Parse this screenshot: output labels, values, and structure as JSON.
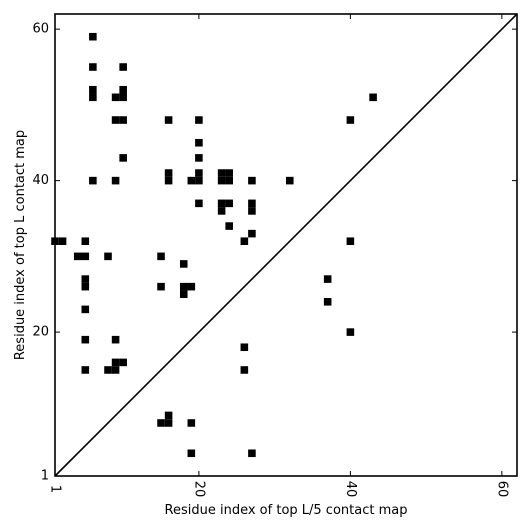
{
  "chart_data": {
    "type": "heatmap",
    "xlabel": "Residue index of top L/5 contact map",
    "ylabel": "Residue index of top L contact map",
    "xlim": [
      1,
      62
    ],
    "ylim": [
      1,
      62
    ],
    "x_ticks": [
      {
        "value": 1,
        "label": "1"
      },
      {
        "value": 20,
        "label": "20"
      },
      {
        "value": 40,
        "label": "40"
      },
      {
        "value": 60,
        "label": "60"
      }
    ],
    "y_ticks": [
      {
        "value": 1,
        "label": "1"
      },
      {
        "value": 20,
        "label": "20"
      },
      {
        "value": 40,
        "label": "40"
      },
      {
        "value": 60,
        "label": "60"
      }
    ],
    "diagonal": true,
    "cell_color": "#000000",
    "upper_contacts": [
      [
        6,
        59
      ],
      [
        6,
        55
      ],
      [
        6,
        52
      ],
      [
        6,
        51
      ],
      [
        6,
        40
      ],
      [
        10,
        55
      ],
      [
        10,
        52
      ],
      [
        10,
        51
      ],
      [
        9,
        51
      ],
      [
        9,
        48
      ],
      [
        10,
        48
      ],
      [
        10,
        43
      ],
      [
        9,
        40
      ],
      [
        1,
        32
      ],
      [
        2,
        32
      ],
      [
        5,
        32
      ],
      [
        4,
        30
      ],
      [
        5,
        30
      ],
      [
        8,
        30
      ],
      [
        5,
        27
      ],
      [
        5,
        26
      ],
      [
        5,
        23
      ],
      [
        5,
        19
      ],
      [
        5,
        15
      ],
      [
        9,
        19
      ],
      [
        8,
        15
      ],
      [
        9,
        15
      ],
      [
        9,
        16
      ],
      [
        10,
        16
      ],
      [
        16,
        48
      ],
      [
        16,
        41
      ],
      [
        16,
        40
      ],
      [
        15,
        30
      ],
      [
        15,
        26
      ],
      [
        18,
        29
      ],
      [
        18,
        26
      ],
      [
        19,
        26
      ],
      [
        18,
        25
      ],
      [
        19,
        40
      ],
      [
        20,
        40
      ],
      [
        20,
        41
      ],
      [
        20,
        48
      ],
      [
        20,
        45
      ],
      [
        20,
        43
      ],
      [
        20,
        37
      ],
      [
        23,
        41
      ],
      [
        24,
        41
      ],
      [
        23,
        40
      ],
      [
        24,
        40
      ],
      [
        23,
        37
      ],
      [
        24,
        37
      ],
      [
        23,
        36
      ],
      [
        24,
        34
      ],
      [
        26,
        32
      ],
      [
        27,
        40
      ],
      [
        27,
        37
      ],
      [
        27,
        36
      ],
      [
        27,
        33
      ],
      [
        32,
        40
      ]
    ],
    "lower_contacts": [
      [
        15,
        8
      ],
      [
        16,
        8
      ],
      [
        16,
        9
      ],
      [
        19,
        8
      ],
      [
        19,
        4
      ],
      [
        27,
        4
      ],
      [
        26,
        18
      ],
      [
        26,
        15
      ],
      [
        37,
        27
      ],
      [
        37,
        24
      ],
      [
        40,
        48
      ],
      [
        40,
        32
      ],
      [
        40,
        20
      ],
      [
        43,
        51
      ]
    ]
  }
}
